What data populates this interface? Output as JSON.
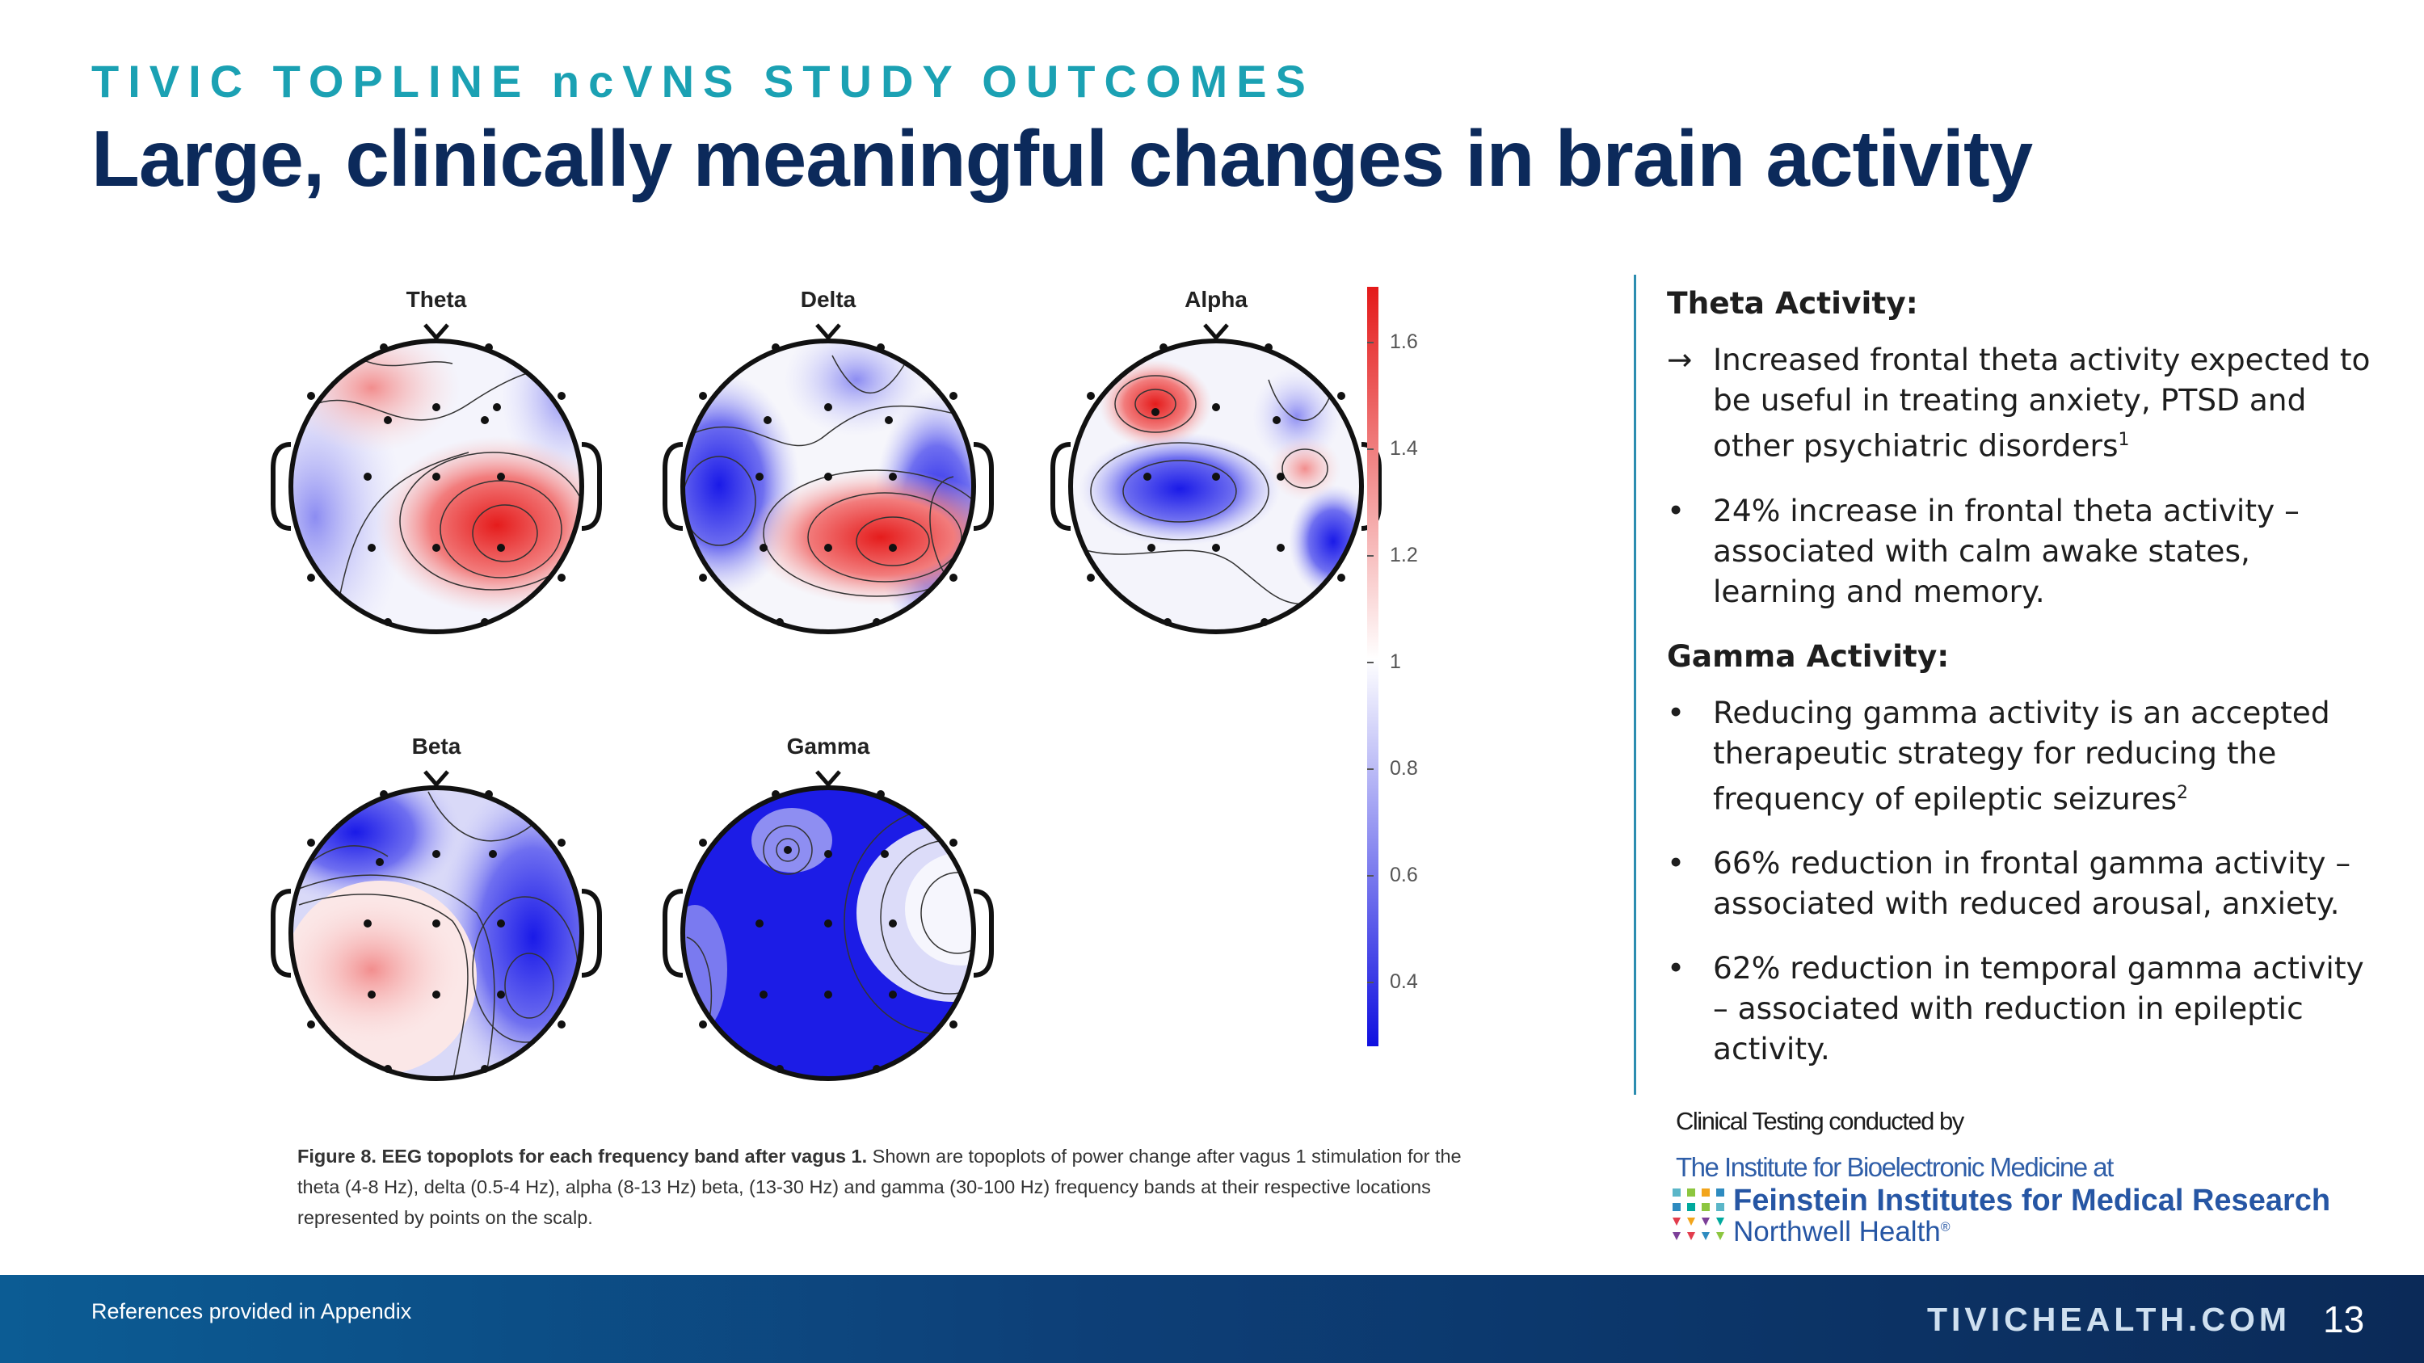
{
  "header": {
    "kicker": "TIVIC TOPLINE ncVNS STUDY OUTCOMES",
    "title": "Large, clinically meaningful changes in brain activity"
  },
  "figure": {
    "panels": [
      "Theta",
      "Delta",
      "Alpha",
      "Beta",
      "Gamma"
    ],
    "colorbar_ticks": [
      "1.6",
      "1.4",
      "1.2",
      "1",
      "0.8",
      "0.6",
      "0.4"
    ],
    "caption_bold": "Figure 8. EEG topoplots for each frequency band after vagus 1.",
    "caption_text": " Shown are topoplots of power change after vagus 1 stimulation for the theta (4-8 Hz), delta (0.5-4 Hz), alpha (8-13 Hz) beta, (13-30 Hz) and gamma (30-100 Hz) frequency bands at their respective locations represented by points on the scalp."
  },
  "panel": {
    "theta_heading": "Theta Activity:",
    "theta_arrow": "→",
    "theta_item1": "Increased frontal theta activity expected to be useful in treating anxiety, PTSD and other psychiatric disorders",
    "theta_item1_ref": "1",
    "bullet": "•",
    "theta_item2": "24% increase in frontal theta activity – associated with calm awake states, learning and memory.",
    "gamma_heading": "Gamma Activity:",
    "gamma_item1": "Reducing gamma activity is an accepted therapeutic strategy for reducing the frequency of epileptic seizures",
    "gamma_item1_ref": "2",
    "gamma_item2": "66% reduction in frontal gamma activity – associated with reduced arousal, anxiety.",
    "gamma_item3": "62% reduction in temporal gamma activity – associated with reduction in epileptic activity."
  },
  "credit": {
    "line1": "Clinical Testing conducted by",
    "line2": "The Institute for Bioelectronic Medicine at",
    "feinstein": "Feinstein Institutes for Medical Research",
    "northwell": "Northwell Health",
    "northwell_mark": "®"
  },
  "footer": {
    "references": "References provided in Appendix",
    "website": "TIVICHEALTH.COM",
    "page_number": "13"
  }
}
